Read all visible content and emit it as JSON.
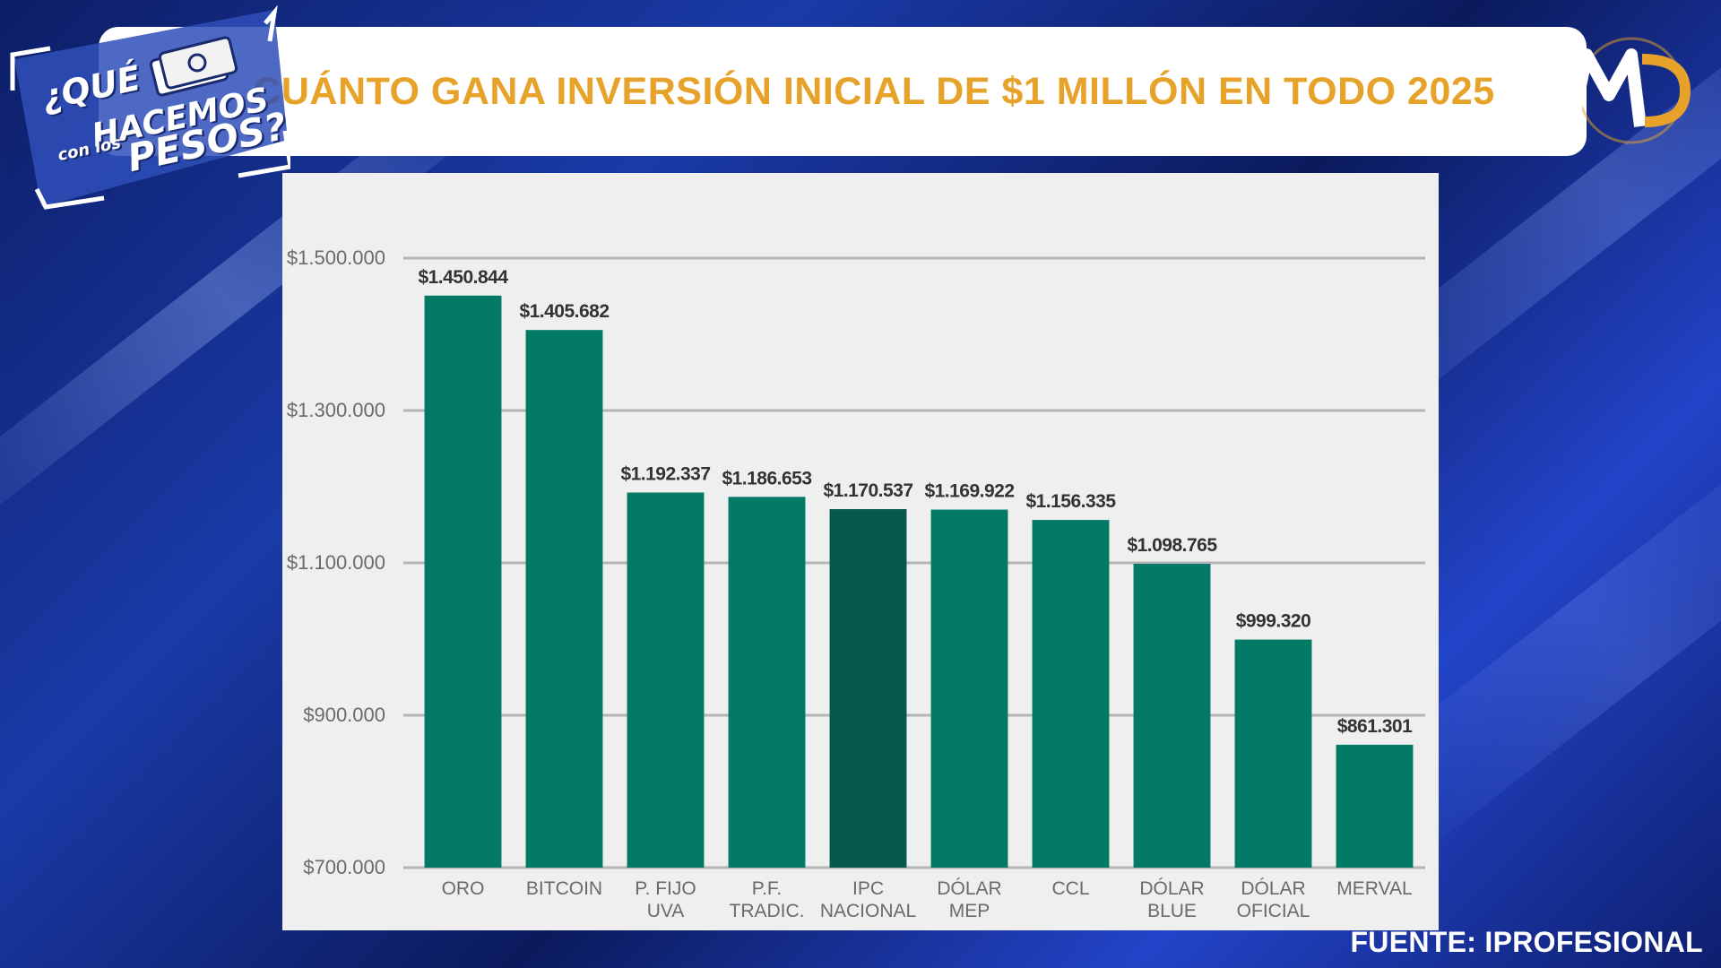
{
  "title": "CUÁNTO GANA INVERSIÓN INICIAL DE $1 MILLÓN EN TODO 2025",
  "show_logo": {
    "line1": "¿QUÉ",
    "line2": "HACEMOS",
    "line3": "con los",
    "line4": "PESOS?"
  },
  "channel_logo": "MD",
  "source": "FUENTE: IPROFESIONAL",
  "colors": {
    "bar": "#037a66",
    "bar_highlight": "#04594a",
    "title": "#e7a22a",
    "panel": "#efefef",
    "grid": "#b5b5b5"
  },
  "chart_data": {
    "type": "bar",
    "title": "",
    "xlabel": "",
    "ylabel": "",
    "ylim": [
      700000,
      1500000
    ],
    "y_ticks": [
      {
        "value": 1500000,
        "label": "$1.500.000"
      },
      {
        "value": 1300000,
        "label": "$1.300.000"
      },
      {
        "value": 1100000,
        "label": "$1.100.000"
      },
      {
        "value": 900000,
        "label": "$900.000"
      },
      {
        "value": 700000,
        "label": "$700.000"
      }
    ],
    "categories": [
      [
        "ORO"
      ],
      [
        "BITCOIN"
      ],
      [
        "P. FIJO",
        "UVA"
      ],
      [
        "P.F.",
        "TRADIC."
      ],
      [
        "IPC",
        "NACIONAL"
      ],
      [
        "DÓLAR",
        "MEP"
      ],
      [
        "CCL"
      ],
      [
        "DÓLAR",
        "BLUE"
      ],
      [
        "DÓLAR",
        "OFICIAL"
      ],
      [
        "MERVAL"
      ]
    ],
    "values": [
      1450844,
      1405682,
      1192337,
      1186653,
      1170537,
      1169922,
      1156335,
      1098765,
      999320,
      861301
    ],
    "value_labels": [
      "$1.450.844",
      "$1.405.682",
      "$1.192.337",
      "$1.186.653",
      "$1.170.537",
      "$1.169.922",
      "$1.156.335",
      "$1.098.765",
      "$999.320",
      "$861.301"
    ],
    "highlight_category": "IPC NACIONAL",
    "grid": true,
    "legend": "none"
  }
}
